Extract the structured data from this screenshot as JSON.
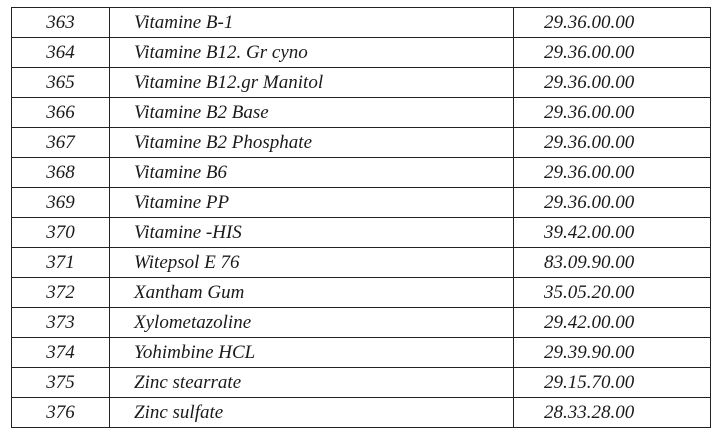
{
  "table": {
    "rows": [
      {
        "num": "363",
        "name": "Vitamine B-1",
        "code": "29.36.00.00"
      },
      {
        "num": "364",
        "name": "Vitamine B12. Gr cyno",
        "code": "29.36.00.00"
      },
      {
        "num": "365",
        "name": "Vitamine B12.gr Manitol",
        "code": "29.36.00.00"
      },
      {
        "num": "366",
        "name": "Vitamine B2 Base",
        "code": "29.36.00.00"
      },
      {
        "num": "367",
        "name": "Vitamine B2 Phosphate",
        "code": "29.36.00.00"
      },
      {
        "num": "368",
        "name": "Vitamine B6",
        "code": "29.36.00.00"
      },
      {
        "num": "369",
        "name": "Vitamine PP",
        "code": "29.36.00.00"
      },
      {
        "num": "370",
        "name": "Vitamine -HIS",
        "code": "39.42.00.00"
      },
      {
        "num": "371",
        "name": "Witepsol E 76",
        "code": "83.09.90.00"
      },
      {
        "num": "372",
        "name": "Xantham Gum",
        "code": "35.05.20.00"
      },
      {
        "num": "373",
        "name": "Xylometazoline",
        "code": "29.42.00.00"
      },
      {
        "num": "374",
        "name": "Yohimbine HCL",
        "code": "29.39.90.00"
      },
      {
        "num": "375",
        "name": "Zinc stearrate",
        "code": "29.15.70.00"
      },
      {
        "num": "376",
        "name": "Zinc sulfate",
        "code": "28.33.28.00"
      }
    ]
  }
}
